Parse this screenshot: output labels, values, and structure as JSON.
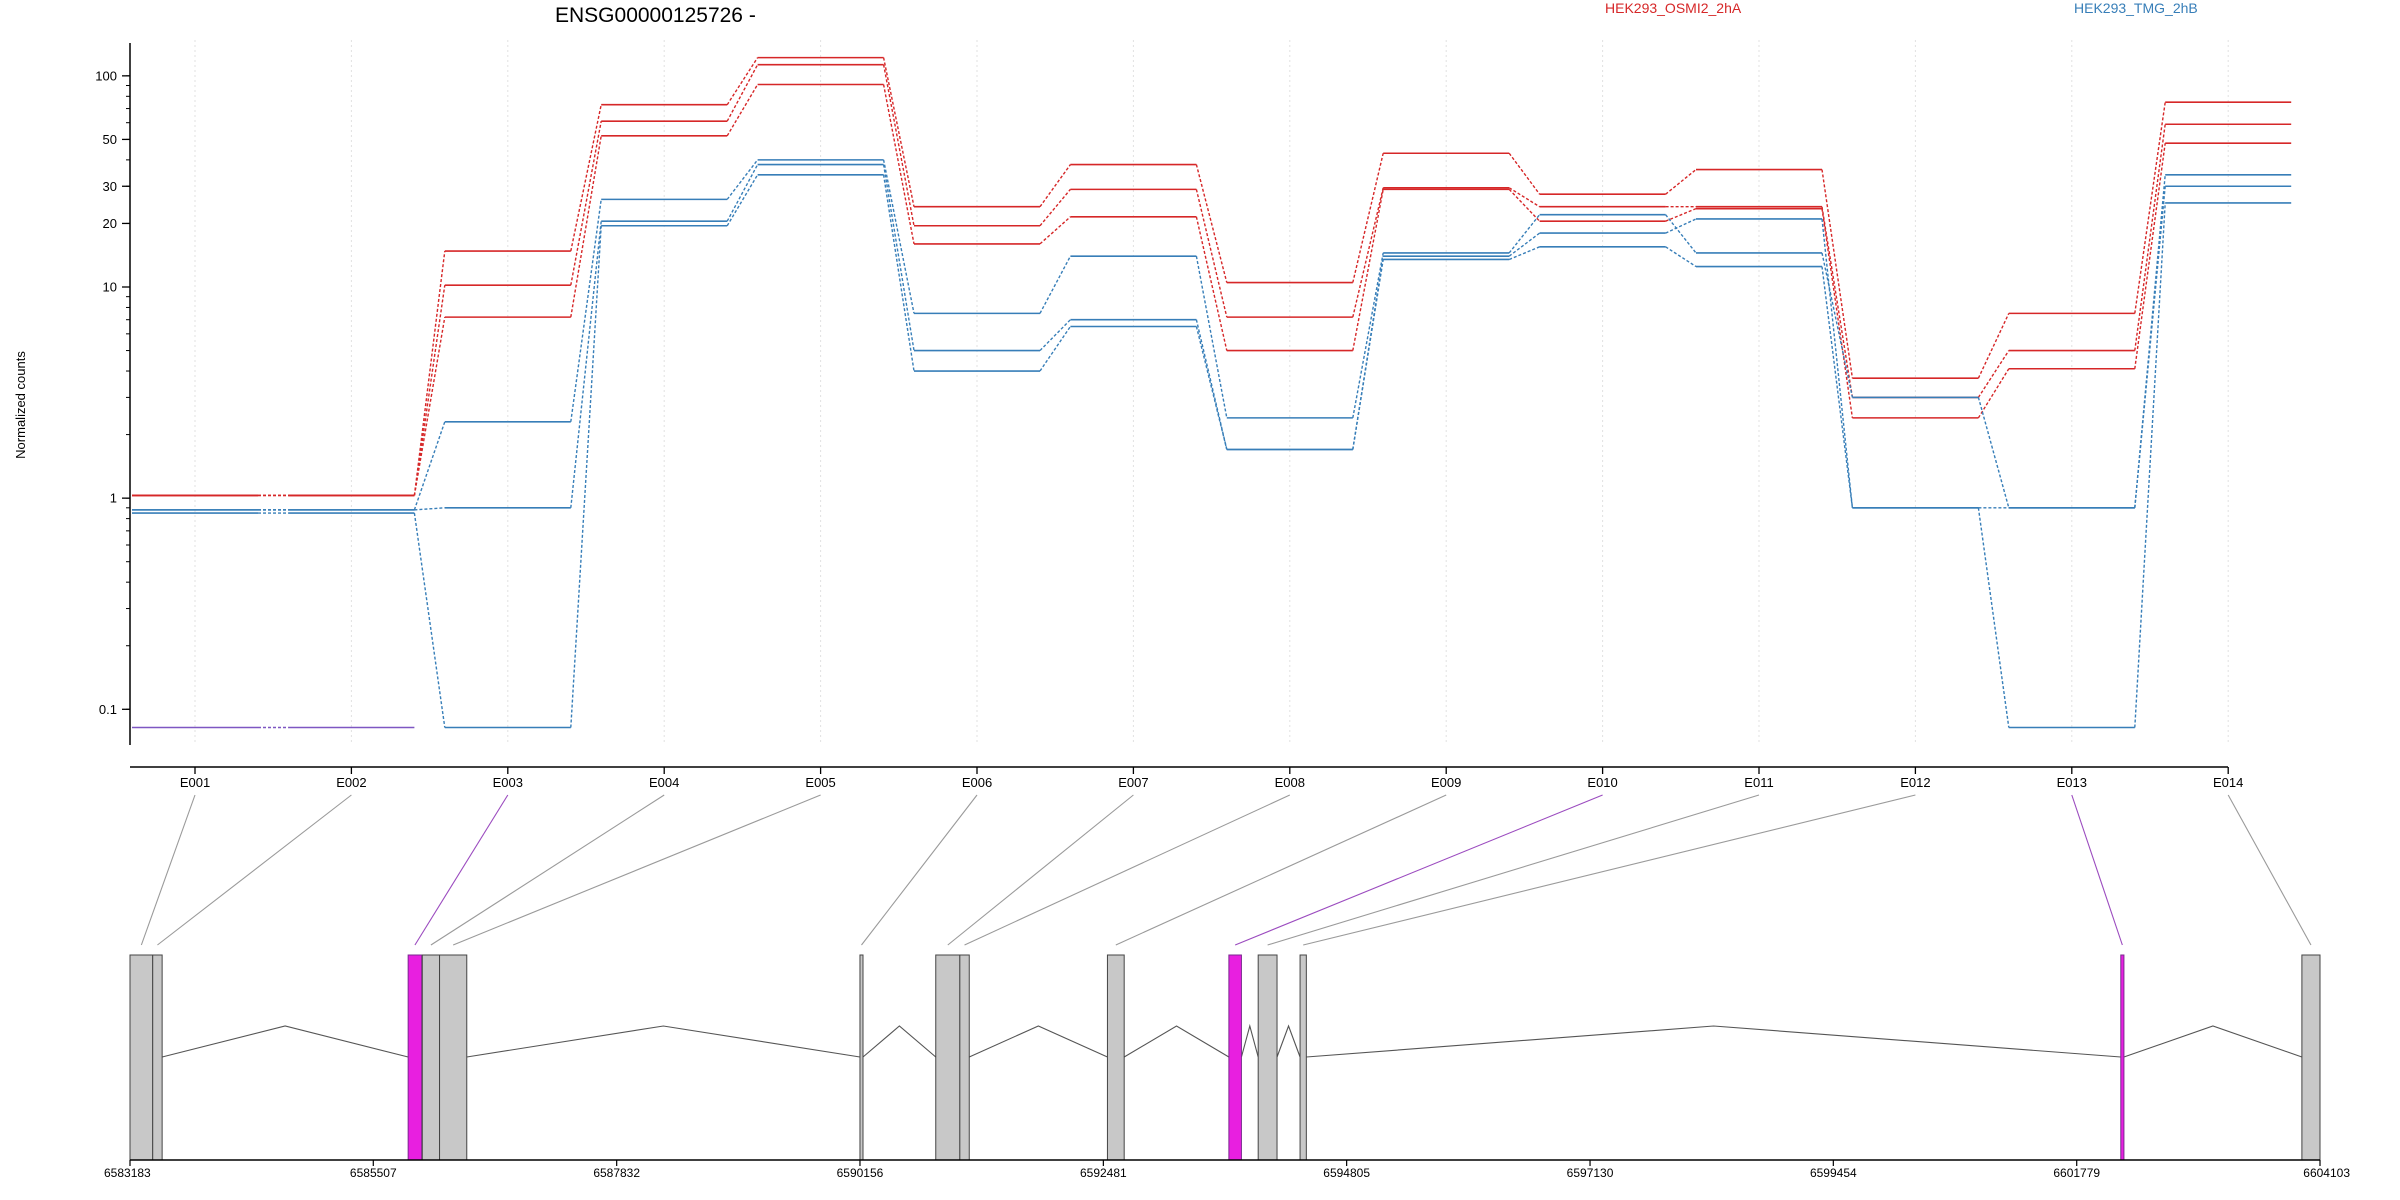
{
  "chart_data": {
    "type": "line",
    "title": "ENSG00000125726 -",
    "ylabel": "Normalized counts",
    "y_scale": "log",
    "ylim": [
      0.07,
      140
    ],
    "y_ticks": [
      0.1,
      1,
      10,
      20,
      30,
      50,
      100
    ],
    "y_tick_labels": [
      "0.1",
      "1",
      "10",
      "20",
      "30",
      "50",
      "100"
    ],
    "categories": [
      "E001",
      "E002",
      "E003",
      "E004",
      "E005",
      "E006",
      "E007",
      "E008",
      "E009",
      "E010",
      "E011",
      "E012",
      "E013",
      "E014"
    ],
    "grid": "vertical dotted at each exon",
    "legend": [
      {
        "label": "HEK293_OSMI2_2hA",
        "color": "#d62728",
        "placement": "top"
      },
      {
        "label": "HEK293_TMG_2hB",
        "color": "#377eb8",
        "placement": "top-right"
      }
    ],
    "series": [
      {
        "group": "HEK293_OSMI2_2hA",
        "color": "#d62728",
        "values": [
          1.03,
          1.03,
          14.8,
          73,
          122,
          24,
          38,
          10.5,
          43,
          27.5,
          36,
          3.7,
          7.5,
          75
        ]
      },
      {
        "group": "HEK293_OSMI2_2hA",
        "color": "#d62728",
        "values": [
          1.03,
          1.03,
          10.2,
          61,
          113,
          19.5,
          29,
          7.2,
          29.5,
          24,
          24,
          3.0,
          5.0,
          59
        ]
      },
      {
        "group": "HEK293_OSMI2_2hA",
        "color": "#d62728",
        "values": [
          1.03,
          1.03,
          7.2,
          52,
          91,
          16,
          21.5,
          5.0,
          29,
          20.5,
          23.5,
          2.4,
          4.1,
          48
        ]
      },
      {
        "group": "HEK293_TMG_2hB",
        "color": "#377eb8",
        "values": [
          0.88,
          0.88,
          2.3,
          26,
          40,
          7.5,
          14,
          2.4,
          14.5,
          22,
          14.5,
          3.0,
          0.9,
          34
        ]
      },
      {
        "group": "HEK293_TMG_2hB",
        "color": "#377eb8",
        "values": [
          0.88,
          0.88,
          0.9,
          20.5,
          38,
          5.0,
          7.0,
          1.7,
          14,
          18,
          21,
          0.9,
          0.9,
          30
        ]
      },
      {
        "group": "HEK293_TMG_2hB",
        "color": "#377eb8",
        "values": [
          0.85,
          0.85,
          0.082,
          19.5,
          34,
          4.0,
          6.5,
          1.7,
          13.5,
          15.5,
          12.5,
          0.9,
          0.082,
          25
        ]
      },
      {
        "group": "HEK293_TMG_2hB",
        "color": "#7e57c2",
        "values": [
          0.082,
          0.082,
          null,
          null,
          null,
          null,
          null,
          null,
          null,
          null,
          null,
          null,
          null,
          null
        ]
      }
    ],
    "gene_model": {
      "x_ticks": [
        6583183,
        6585507,
        6587832,
        6590156,
        6592481,
        6594805,
        6597130,
        6599454,
        6601779,
        6604103
      ],
      "x_tick_labels": [
        "6583183",
        "6585507",
        "6587832",
        "6590156",
        "6592481",
        "6594805",
        "6597130",
        "6599454",
        "6601779",
        "6604103"
      ],
      "xlim": [
        6583183,
        6604103
      ],
      "exons": [
        {
          "id": "E001",
          "start": 6583183,
          "end": 6583400,
          "significant": false
        },
        {
          "id": "E002",
          "start": 6583400,
          "end": 6583490,
          "significant": false
        },
        {
          "id": "E003",
          "start": 6585840,
          "end": 6585970,
          "significant": true
        },
        {
          "id": "E004",
          "start": 6585975,
          "end": 6586140,
          "significant": false
        },
        {
          "id": "E005",
          "start": 6586140,
          "end": 6586400,
          "significant": false
        },
        {
          "id": "E006",
          "start": 6590156,
          "end": 6590185,
          "significant": false
        },
        {
          "id": "E007",
          "start": 6590880,
          "end": 6591110,
          "significant": false
        },
        {
          "id": "E008",
          "start": 6591110,
          "end": 6591200,
          "significant": false
        },
        {
          "id": "E009",
          "start": 6592520,
          "end": 6592680,
          "significant": false
        },
        {
          "id": "E010",
          "start": 6593680,
          "end": 6593800,
          "significant": true
        },
        {
          "id": "E011",
          "start": 6593960,
          "end": 6594140,
          "significant": false
        },
        {
          "id": "E012",
          "start": 6594360,
          "end": 6594420,
          "significant": false
        },
        {
          "id": "E013",
          "start": 6602200,
          "end": 6602230,
          "significant": true
        },
        {
          "id": "E014",
          "start": 6603930,
          "end": 6604103,
          "significant": false
        }
      ],
      "exon_fill": "#c8c8c8",
      "significant_fill": "#e81fe0",
      "significant_line": "#9b4bbf"
    }
  }
}
